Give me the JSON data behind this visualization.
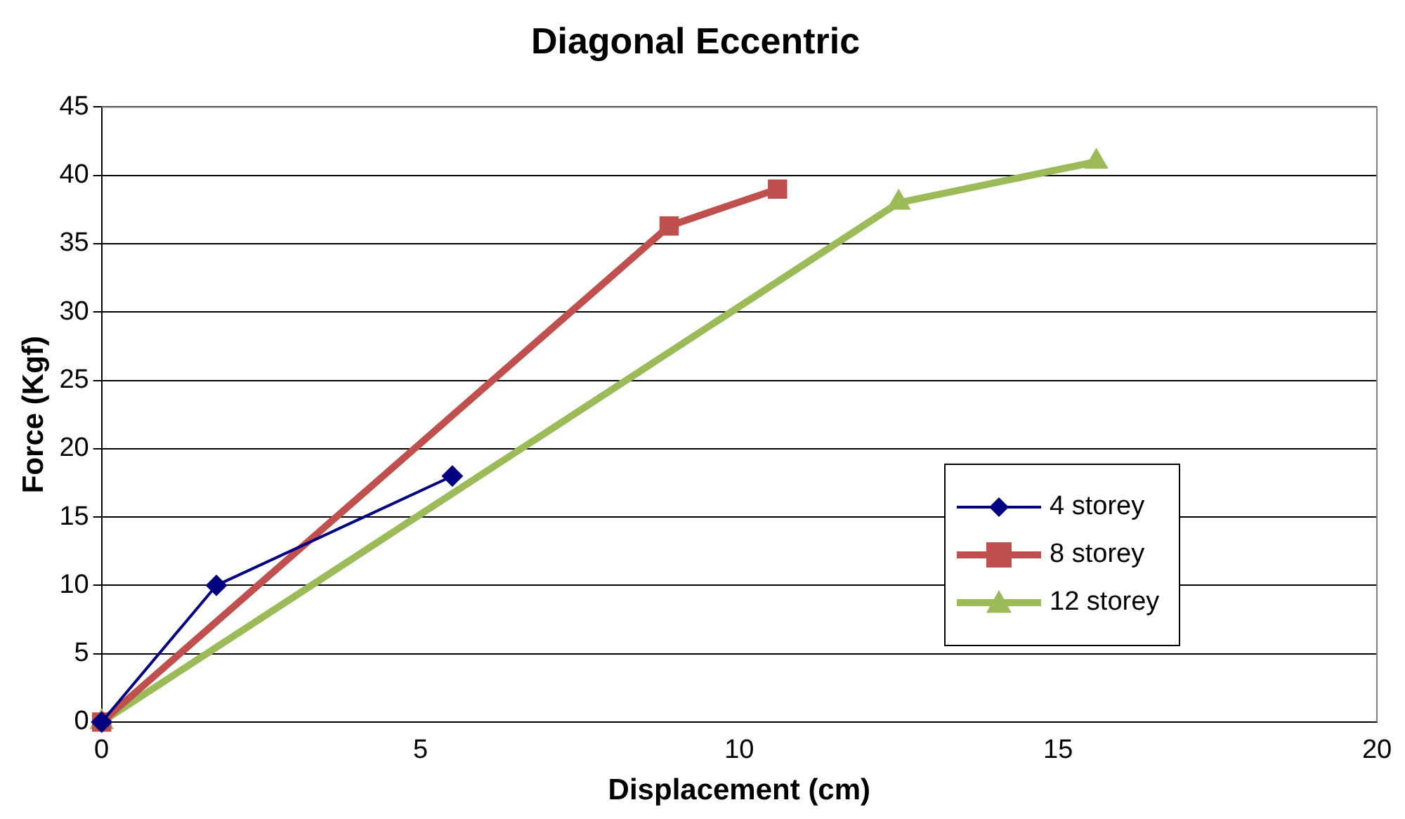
{
  "chart_data": {
    "type": "line",
    "title": "Diagonal Eccentric",
    "xlabel": "Displacement (cm)",
    "ylabel": "Force (Kgf)",
    "xlim": [
      0,
      20
    ],
    "xticks": [
      0,
      5,
      10,
      15,
      20
    ],
    "ylim": [
      0,
      45
    ],
    "yticks": [
      0,
      5,
      10,
      15,
      20,
      25,
      30,
      35,
      40,
      45
    ],
    "grid": "y",
    "legend": "bottom right",
    "series": [
      {
        "name": "4 storey",
        "color": "#000080",
        "marker": "diamond",
        "x": [
          0,
          1.8,
          5.5
        ],
        "values": [
          0,
          10,
          18
        ]
      },
      {
        "name": "8 storey",
        "color": "#c0504d",
        "marker": "square",
        "x": [
          0,
          8.9,
          10.6
        ],
        "values": [
          0,
          36.3,
          39
        ]
      },
      {
        "name": "12 storey",
        "color": "#9bbb59",
        "marker": "triangle",
        "x": [
          0,
          12.5,
          15.6
        ],
        "values": [
          0,
          38,
          41
        ]
      }
    ]
  }
}
